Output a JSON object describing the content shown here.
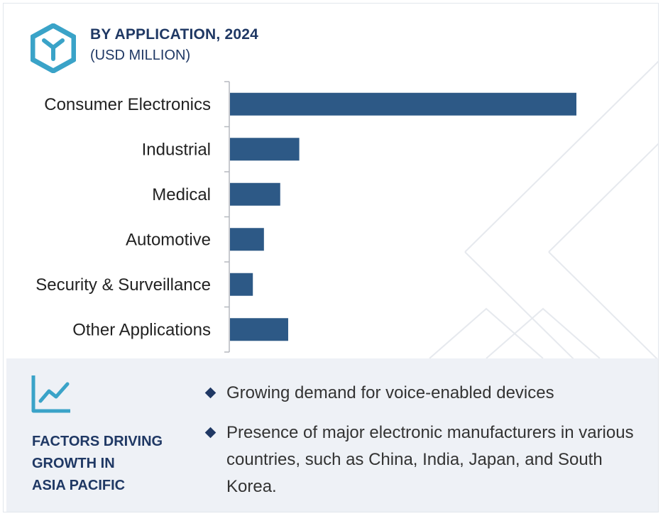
{
  "header": {
    "title": "BY APPLICATION, 2024",
    "subtitle": "(USD MILLION)"
  },
  "chart_data": {
    "type": "bar",
    "orientation": "horizontal",
    "title": "BY APPLICATION, 2024",
    "subtitle": "(USD MILLION)",
    "categories": [
      "Consumer Electronics",
      "Industrial",
      "Medical",
      "Automotive",
      "Security & Surveillance",
      "Other Applications"
    ],
    "values": [
      100,
      20,
      14.5,
      9.8,
      6.6,
      16.8
    ],
    "xlim": [
      0,
      100
    ],
    "grid": false,
    "legend": "none",
    "bar_color": "#2d5986"
  },
  "panel": {
    "title": "FACTORS DRIVING\nGROWTH IN\nASIA PACIFIC",
    "bullets": [
      "Growing demand for voice-enabled devices",
      "Presence of major electronic manufacturers in various countries, such as China, India, Japan, and South Korea."
    ],
    "icon": "trend-chart-icon"
  },
  "colors": {
    "accent": "#3aa3c8",
    "title": "#1f3864",
    "bar": "#2d5986",
    "panel_bg": "#eef1f6"
  }
}
